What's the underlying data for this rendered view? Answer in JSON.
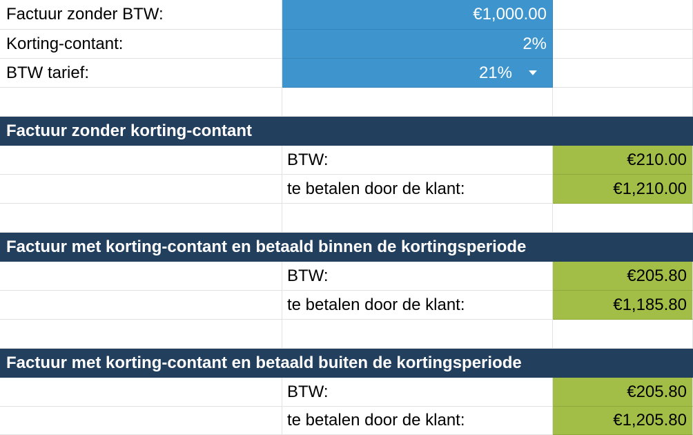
{
  "inputs": {
    "invoice_label": "Factuur zonder BTW:",
    "invoice_value": "€1,000.00",
    "discount_label": "Korting-contant:",
    "discount_value": "2%",
    "vat_label": "BTW tarief:",
    "vat_value": "21%"
  },
  "sections": [
    {
      "title": "Factuur zonder korting-contant",
      "btw_label": "BTW:",
      "btw_value": "€210.00",
      "total_label": "te betalen door de klant:",
      "total_value": "€1,210.00"
    },
    {
      "title": "Factuur met korting-contant en betaald binnen de kortingsperiode",
      "btw_label": "BTW:",
      "btw_value": "€205.80",
      "total_label": "te betalen door de klant:",
      "total_value": "€1,185.80"
    },
    {
      "title": "Factuur met korting-contant en betaald buiten de kortingsperiode",
      "btw_label": "BTW:",
      "btw_value": "€205.80",
      "total_label": "te betalen door de klant:",
      "total_value": "€1,205.80"
    }
  ],
  "colors": {
    "input_blue": "#3e95cd",
    "header_navy": "#233f5e",
    "result_green": "#a2be47"
  },
  "icons": {
    "dropdown": "triangle-down"
  }
}
